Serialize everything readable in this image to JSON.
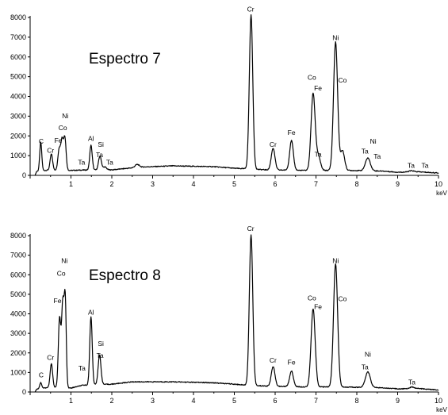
{
  "chart_data": [
    {
      "type": "line",
      "title": "Espectro 7",
      "xlabel": "keV",
      "ylabel": "",
      "xlim": [
        0,
        10
      ],
      "ylim": [
        0,
        8000
      ],
      "xticks": [
        1,
        2,
        3,
        4,
        5,
        6,
        7,
        8,
        9,
        10
      ],
      "yticks": [
        0,
        1000,
        2000,
        3000,
        4000,
        5000,
        6000,
        7000,
        8000
      ],
      "grid": false,
      "baseline": [
        [
          0.12,
          0
        ],
        [
          0.16,
          200
        ],
        [
          0.5,
          280
        ],
        [
          1.0,
          250
        ],
        [
          1.3,
          270
        ],
        [
          2.0,
          280
        ],
        [
          2.7,
          420
        ],
        [
          3.5,
          480
        ],
        [
          4.5,
          440
        ],
        [
          5.0,
          360
        ],
        [
          5.3,
          330
        ],
        [
          5.8,
          280
        ],
        [
          6.8,
          250
        ],
        [
          7.8,
          250
        ],
        [
          8.6,
          220
        ],
        [
          9.0,
          160
        ],
        [
          9.5,
          180
        ],
        [
          10.0,
          120
        ]
      ],
      "peaks": [
        {
          "x": 0.26,
          "height": 1450,
          "width": 0.025
        },
        {
          "x": 0.52,
          "height": 800,
          "width": 0.03
        },
        {
          "x": 0.71,
          "height": 1050,
          "width": 0.03
        },
        {
          "x": 0.78,
          "height": 1500,
          "width": 0.03
        },
        {
          "x": 0.85,
          "height": 1650,
          "width": 0.03
        },
        {
          "x": 1.49,
          "height": 1250,
          "width": 0.03
        },
        {
          "x": 1.71,
          "height": 700,
          "width": 0.035
        },
        {
          "x": 1.83,
          "height": 150,
          "width": 0.04
        },
        {
          "x": 2.62,
          "height": 150,
          "width": 0.05
        },
        {
          "x": 5.41,
          "height": 7800,
          "width": 0.042
        },
        {
          "x": 5.95,
          "height": 1100,
          "width": 0.045
        },
        {
          "x": 6.4,
          "height": 1500,
          "width": 0.045
        },
        {
          "x": 6.93,
          "height": 3900,
          "width": 0.05
        },
        {
          "x": 7.06,
          "height": 700,
          "width": 0.05
        },
        {
          "x": 7.48,
          "height": 6500,
          "width": 0.05
        },
        {
          "x": 7.65,
          "height": 1000,
          "width": 0.05
        },
        {
          "x": 8.27,
          "height": 650,
          "width": 0.06
        },
        {
          "x": 9.34,
          "height": 60,
          "width": 0.06
        }
      ],
      "labels": [
        {
          "text": "C",
          "x": 0.27,
          "y": 1600
        },
        {
          "text": "Cr",
          "x": 0.5,
          "y": 1150
        },
        {
          "text": "Fe",
          "x": 0.69,
          "y": 1650
        },
        {
          "text": "Co",
          "x": 0.8,
          "y": 2300
        },
        {
          "text": "Ni",
          "x": 0.86,
          "y": 2900
        },
        {
          "text": "Ta",
          "x": 1.26,
          "y": 550
        },
        {
          "text": "Al",
          "x": 1.49,
          "y": 1750
        },
        {
          "text": "Si",
          "x": 1.73,
          "y": 1450
        },
        {
          "text": "Ta",
          "x": 1.7,
          "y": 920
        },
        {
          "text": "Ta",
          "x": 1.95,
          "y": 550
        },
        {
          "text": "Cr",
          "x": 5.4,
          "y": 8300
        },
        {
          "text": "Cr",
          "x": 5.95,
          "y": 1450
        },
        {
          "text": "Fe",
          "x": 6.4,
          "y": 2050
        },
        {
          "text": "Co",
          "x": 6.9,
          "y": 4850
        },
        {
          "text": "Fe",
          "x": 7.05,
          "y": 4300
        },
        {
          "text": "Ta",
          "x": 7.05,
          "y": 950
        },
        {
          "text": "Ni",
          "x": 7.48,
          "y": 6850
        },
        {
          "text": "Co",
          "x": 7.65,
          "y": 4700
        },
        {
          "text": "Ni",
          "x": 8.4,
          "y": 1600
        },
        {
          "text": "Ta",
          "x": 8.2,
          "y": 1100
        },
        {
          "text": "Ta",
          "x": 8.5,
          "y": 850
        },
        {
          "text": "Ta",
          "x": 9.33,
          "y": 380
        },
        {
          "text": "Ta",
          "x": 9.67,
          "y": 380
        }
      ]
    },
    {
      "type": "line",
      "title": "Espectro 8",
      "xlabel": "keV",
      "ylabel": "",
      "xlim": [
        0,
        10
      ],
      "ylim": [
        0,
        8000
      ],
      "xticks": [
        1,
        2,
        3,
        4,
        5,
        6,
        7,
        8,
        9,
        10
      ],
      "yticks": [
        0,
        1000,
        2000,
        3000,
        4000,
        5000,
        6000,
        7000,
        8000
      ],
      "grid": false,
      "baseline": [
        [
          0.12,
          0
        ],
        [
          0.16,
          150
        ],
        [
          0.5,
          250
        ],
        [
          1.0,
          200
        ],
        [
          1.3,
          350
        ],
        [
          2.0,
          400
        ],
        [
          2.5,
          520
        ],
        [
          3.5,
          520
        ],
        [
          4.5,
          470
        ],
        [
          5.0,
          400
        ],
        [
          5.3,
          350
        ],
        [
          5.8,
          300
        ],
        [
          6.8,
          260
        ],
        [
          7.8,
          250
        ],
        [
          8.6,
          220
        ],
        [
          9.0,
          160
        ],
        [
          9.5,
          180
        ],
        [
          10.0,
          100
        ]
      ],
      "peaks": [
        {
          "x": 0.26,
          "height": 300,
          "width": 0.025
        },
        {
          "x": 0.52,
          "height": 1200,
          "width": 0.03
        },
        {
          "x": 0.72,
          "height": 3500,
          "width": 0.03
        },
        {
          "x": 0.8,
          "height": 4300,
          "width": 0.03
        },
        {
          "x": 0.86,
          "height": 4300,
          "width": 0.025
        },
        {
          "x": 1.49,
          "height": 3500,
          "width": 0.03
        },
        {
          "x": 1.7,
          "height": 1500,
          "width": 0.035
        },
        {
          "x": 5.41,
          "height": 7700,
          "width": 0.042
        },
        {
          "x": 5.95,
          "height": 1000,
          "width": 0.045
        },
        {
          "x": 6.4,
          "height": 800,
          "width": 0.045
        },
        {
          "x": 6.93,
          "height": 4000,
          "width": 0.05
        },
        {
          "x": 7.48,
          "height": 6300,
          "width": 0.05
        },
        {
          "x": 8.27,
          "height": 800,
          "width": 0.06
        },
        {
          "x": 9.35,
          "height": 80,
          "width": 0.06
        }
      ],
      "labels": [
        {
          "text": "C",
          "x": 0.27,
          "y": 750
        },
        {
          "text": "Cr",
          "x": 0.5,
          "y": 1650
        },
        {
          "text": "Fe",
          "x": 0.67,
          "y": 4550
        },
        {
          "text": "Co",
          "x": 0.76,
          "y": 5950
        },
        {
          "text": "Ni",
          "x": 0.84,
          "y": 6600
        },
        {
          "text": "Ta",
          "x": 1.27,
          "y": 1100
        },
        {
          "text": "Al",
          "x": 1.49,
          "y": 3950
        },
        {
          "text": "Si",
          "x": 1.73,
          "y": 2350
        },
        {
          "text": "Ta",
          "x": 1.71,
          "y": 1750
        },
        {
          "text": "Cr",
          "x": 5.4,
          "y": 8250
        },
        {
          "text": "Cr",
          "x": 5.95,
          "y": 1500
        },
        {
          "text": "Fe",
          "x": 6.4,
          "y": 1400
        },
        {
          "text": "Co",
          "x": 6.9,
          "y": 4700
        },
        {
          "text": "Fe",
          "x": 7.05,
          "y": 4250
        },
        {
          "text": "Ni",
          "x": 7.48,
          "y": 6600
        },
        {
          "text": "Co",
          "x": 7.65,
          "y": 4650
        },
        {
          "text": "Ni",
          "x": 8.27,
          "y": 1800
        },
        {
          "text": "Ta",
          "x": 8.2,
          "y": 1150
        },
        {
          "text": "Ta",
          "x": 9.35,
          "y": 380
        }
      ]
    }
  ]
}
